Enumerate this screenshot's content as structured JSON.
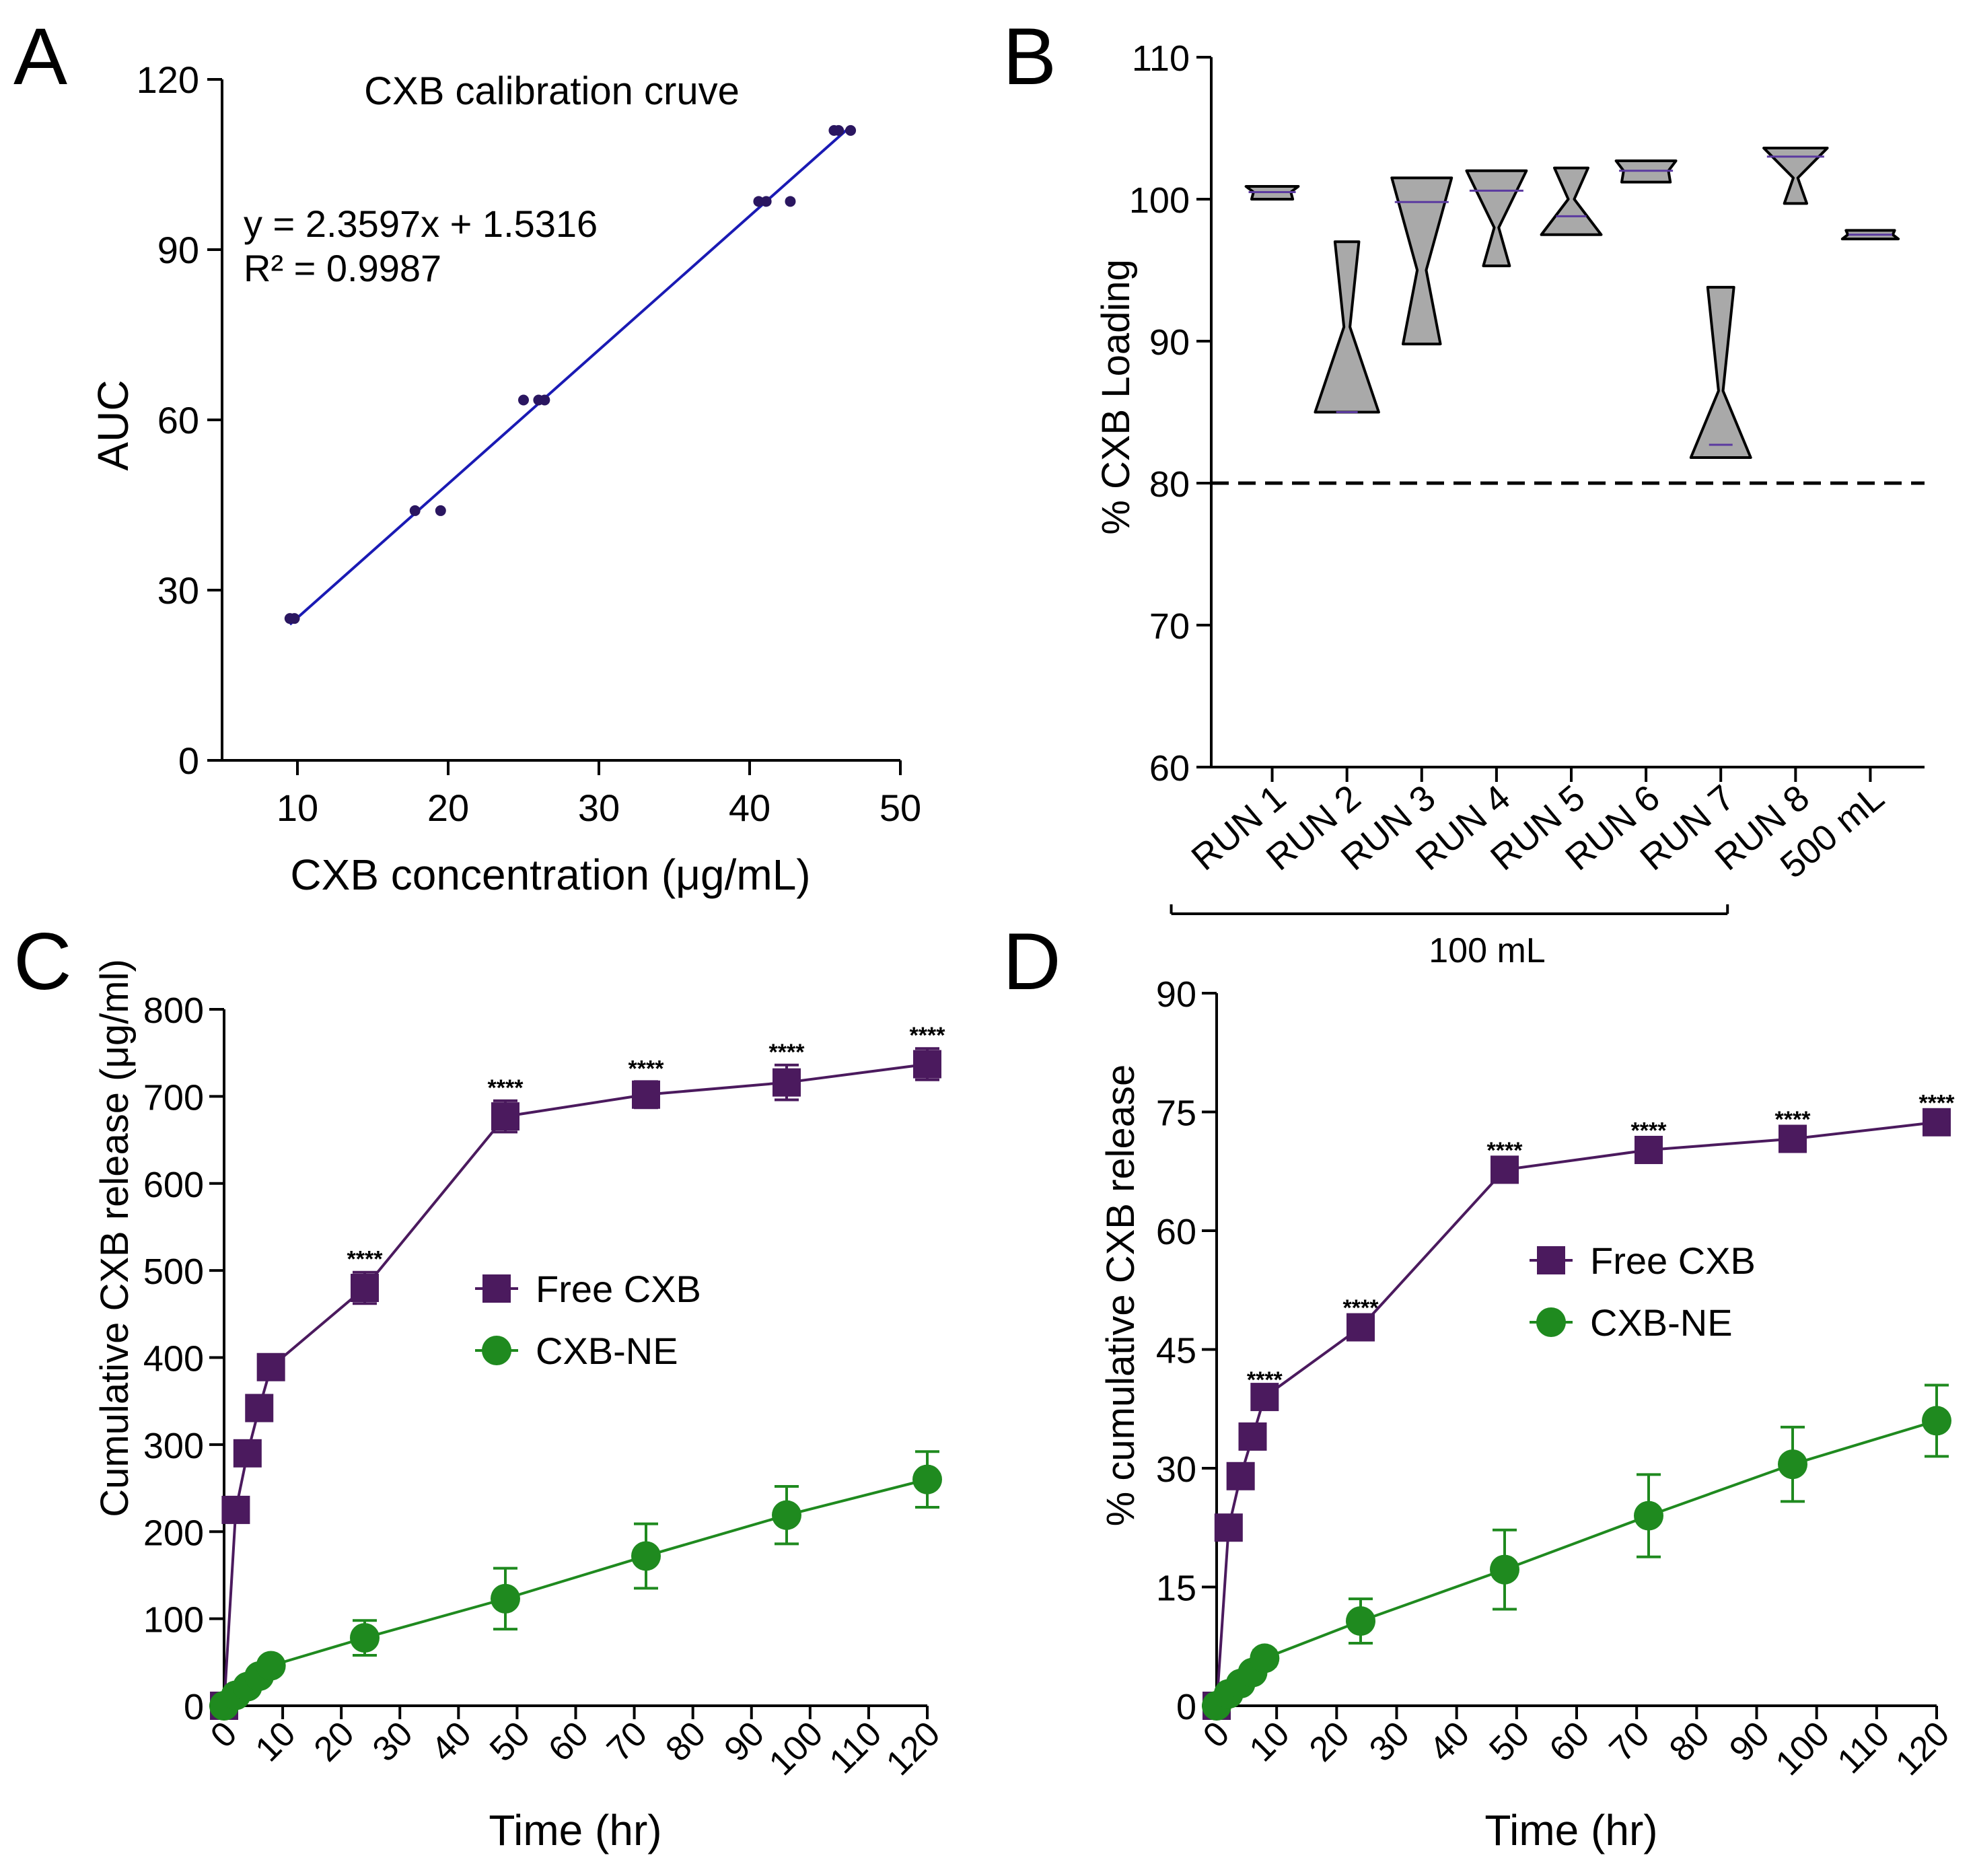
{
  "panels": {
    "A": "A",
    "B": "B",
    "C": "C",
    "D": "D"
  },
  "colors": {
    "axis": "#000000",
    "scatter_points": "#2a1660",
    "fit_line": "#1a1ab4",
    "violin_fill": "#a9a9a9",
    "violin_median": "#5b3aa0",
    "free_cxb": "#4b1a5e",
    "cxb_ne": "#1f8a1f"
  },
  "chart_data": [
    {
      "panel": "A",
      "type": "scatter",
      "title": "CXB calibration cruve",
      "xlabel": "CXB concentration (μg/mL)",
      "ylabel": "AUC",
      "xlim": [
        5,
        50
      ],
      "ylim": [
        0,
        120
      ],
      "xticks": [
        10,
        20,
        30,
        40,
        50
      ],
      "yticks": [
        0,
        30,
        60,
        90,
        120
      ],
      "equation": "y = 2.3597x + 1.5316",
      "r2": "R² = 0.9987",
      "fit": {
        "slope": 2.3597,
        "intercept": 1.5316,
        "x_range": [
          9.5,
          46.5
        ]
      },
      "points": [
        {
          "x": 9.5,
          "y": 25
        },
        {
          "x": 9.8,
          "y": 25
        },
        {
          "x": 17.8,
          "y": 44
        },
        {
          "x": 19.5,
          "y": 44
        },
        {
          "x": 25.0,
          "y": 63.5
        },
        {
          "x": 26.0,
          "y": 63.5
        },
        {
          "x": 26.4,
          "y": 63.5
        },
        {
          "x": 40.6,
          "y": 98.5
        },
        {
          "x": 41.1,
          "y": 98.5
        },
        {
          "x": 42.7,
          "y": 98.5
        },
        {
          "x": 45.6,
          "y": 111
        },
        {
          "x": 45.9,
          "y": 111
        },
        {
          "x": 46.7,
          "y": 111
        }
      ]
    },
    {
      "panel": "B",
      "type": "violin",
      "ylabel": "% CXB Loading",
      "ylim": [
        60,
        110
      ],
      "yticks": [
        60,
        70,
        80,
        90,
        100,
        110
      ],
      "categories": [
        "RUN 1",
        "RUN 2",
        "RUN 3",
        "RUN 4",
        "RUN 5",
        "RUN 6",
        "RUN 7",
        "RUN 8",
        "500 mL"
      ],
      "group_label": "100 mL",
      "group_span": [
        "RUN 1",
        "RUN 7"
      ],
      "threshold": 80,
      "violins": [
        {
          "min": 100.0,
          "max": 100.9,
          "median": 100.5,
          "neck": 100.5,
          "top_w": 0.7,
          "bot_w": 0.55,
          "neck_w": 0.5
        },
        {
          "min": 85.0,
          "max": 97.0,
          "median": 85.0,
          "neck": 91.0,
          "top_w": 0.32,
          "bot_w": 0.85,
          "neck_w": 0.08
        },
        {
          "min": 89.8,
          "max": 101.5,
          "median": 99.8,
          "neck": 95.0,
          "top_w": 0.8,
          "bot_w": 0.5,
          "neck_w": 0.12
        },
        {
          "min": 95.3,
          "max": 102.0,
          "median": 100.6,
          "neck": 98.0,
          "top_w": 0.8,
          "bot_w": 0.35,
          "neck_w": 0.06
        },
        {
          "min": 97.5,
          "max": 102.2,
          "median": 98.8,
          "neck": 100.0,
          "top_w": 0.45,
          "bot_w": 0.8,
          "neck_w": 0.08
        },
        {
          "min": 101.2,
          "max": 102.7,
          "median": 102.0,
          "neck": 102.0,
          "top_w": 0.8,
          "bot_w": 0.65,
          "neck_w": 0.6
        },
        {
          "min": 81.8,
          "max": 93.8,
          "median": 82.7,
          "neck": 86.5,
          "top_w": 0.35,
          "bot_w": 0.8,
          "neck_w": 0.06
        },
        {
          "min": 99.7,
          "max": 103.6,
          "median": 103.0,
          "neck": 101.5,
          "top_w": 0.85,
          "bot_w": 0.3,
          "neck_w": 0.06
        },
        {
          "min": 97.2,
          "max": 97.8,
          "median": 97.5,
          "neck": 97.5,
          "top_w": 0.65,
          "bot_w": 0.75,
          "neck_w": 0.6
        }
      ]
    },
    {
      "panel": "C",
      "type": "line",
      "xlabel": "Time (hr)",
      "ylabel": "Cumulative CXB release (μg/ml)",
      "xlim": [
        0,
        120
      ],
      "ylim": [
        0,
        800
      ],
      "xticks": [
        0,
        10,
        20,
        30,
        40,
        50,
        60,
        70,
        80,
        90,
        100,
        110,
        120
      ],
      "yticks": [
        0,
        100,
        200,
        300,
        400,
        500,
        600,
        700,
        800
      ],
      "x": [
        0,
        2,
        4,
        6,
        8,
        24,
        48,
        72,
        96,
        120
      ],
      "significance": "****",
      "sig_at": [
        24,
        48,
        72,
        96,
        120
      ],
      "series": [
        {
          "name": "Free CXB",
          "marker": "square",
          "values": [
            0,
            225,
            290,
            342,
            389,
            480,
            677,
            702,
            716,
            737
          ],
          "errors": [
            0,
            5,
            5,
            5,
            5,
            18,
            18,
            15,
            20,
            18
          ]
        },
        {
          "name": "CXB-NE",
          "marker": "circle",
          "values": [
            0,
            12,
            22,
            34,
            46,
            78,
            123,
            172,
            219,
            260
          ],
          "errors": [
            0,
            3,
            4,
            5,
            6,
            20,
            35,
            37,
            33,
            32
          ]
        }
      ]
    },
    {
      "panel": "D",
      "type": "line",
      "xlabel": "Time (hr)",
      "ylabel": "% cumulative CXB release",
      "xlim": [
        0,
        120
      ],
      "ylim": [
        0,
        90
      ],
      "xticks": [
        0,
        10,
        20,
        30,
        40,
        50,
        60,
        70,
        80,
        90,
        100,
        110,
        120
      ],
      "yticks": [
        0,
        15,
        30,
        45,
        60,
        75,
        90
      ],
      "x": [
        0,
        2,
        4,
        6,
        8,
        24,
        48,
        72,
        96,
        120
      ],
      "significance": "****",
      "sig_at": [
        8,
        24,
        48,
        72,
        96,
        120
      ],
      "series": [
        {
          "name": "Free CXB",
          "marker": "square",
          "values": [
            0,
            22.5,
            29,
            34,
            39,
            47.8,
            67.7,
            70.2,
            71.6,
            73.7
          ],
          "errors": [
            0,
            0.5,
            0.5,
            0.5,
            0.5,
            0.8,
            0.8,
            0.8,
            0.8,
            0.8
          ]
        },
        {
          "name": "CXB-NE",
          "marker": "circle",
          "values": [
            0,
            1.5,
            2.8,
            4.2,
            6.0,
            10.7,
            17.2,
            24.0,
            30.5,
            36.0
          ],
          "errors": [
            0,
            0.5,
            0.5,
            0.8,
            1.0,
            2.8,
            5.0,
            5.2,
            4.7,
            4.5
          ]
        }
      ]
    }
  ]
}
